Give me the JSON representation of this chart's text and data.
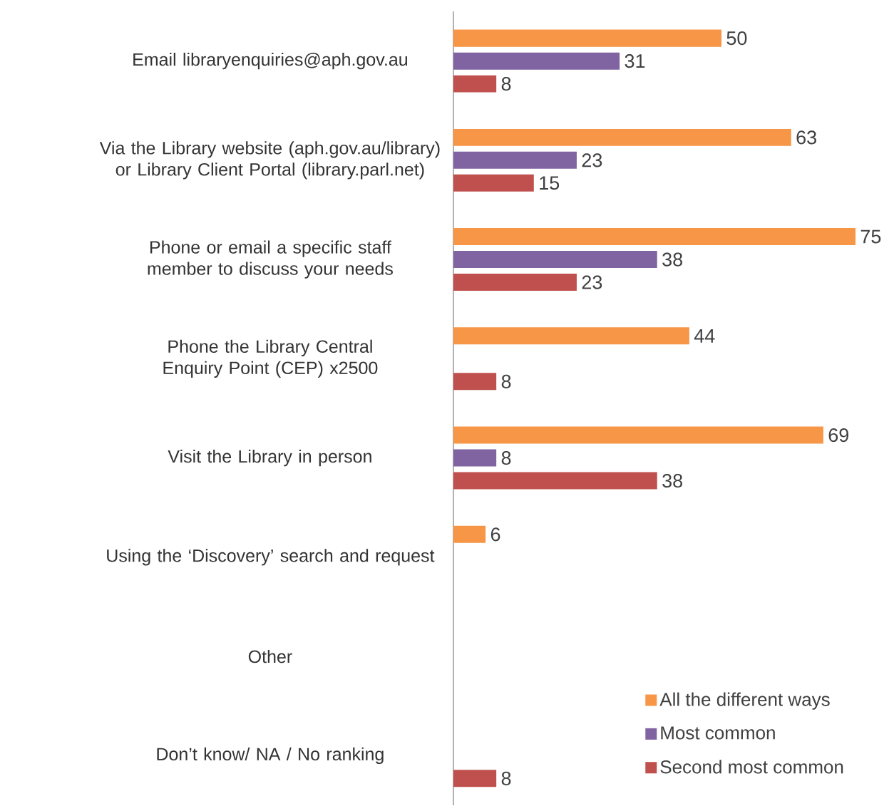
{
  "chart_data": {
    "type": "bar",
    "orientation": "horizontal",
    "categories": [
      "Email libraryenquiries@aph.gov.au",
      "Via the Library website (aph.gov.au/library) or Library Client Portal (library.parl.net)",
      "Phone or email a specific staff member to discuss your needs",
      "Phone the Library Central Enquiry Point (CEP) x2500",
      "Visit the Library in person",
      "Using the ‘Discovery’ search and request",
      "Other",
      "Don’t know/ NA / No ranking"
    ],
    "series": [
      {
        "name": "All the different ways",
        "color": "#f79646",
        "values": [
          50,
          63,
          75,
          44,
          69,
          6,
          null,
          null
        ]
      },
      {
        "name": "Most common",
        "color": "#8064a2",
        "values": [
          31,
          23,
          38,
          null,
          8,
          null,
          null,
          null
        ]
      },
      {
        "name": "Second most common",
        "color": "#c0504d",
        "values": [
          8,
          15,
          23,
          8,
          38,
          null,
          null,
          8
        ]
      }
    ],
    "data_labels": true,
    "tick_labels": "y",
    "legend": "bottom right"
  }
}
